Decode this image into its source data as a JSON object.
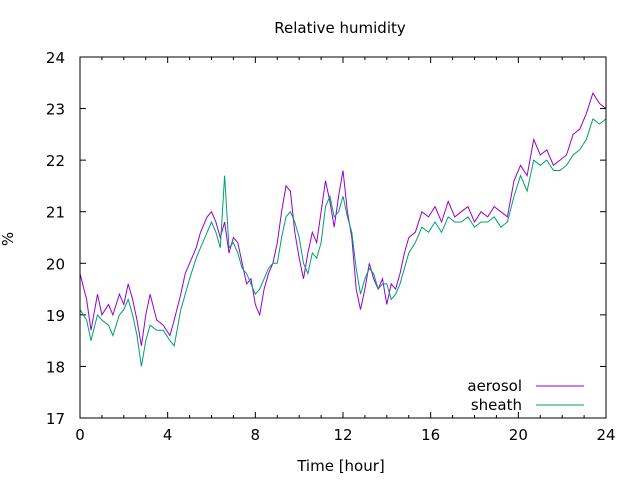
{
  "chart_data": {
    "type": "line",
    "title": "Relative humidity",
    "xlabel": "Time [hour]",
    "ylabel": "%",
    "xlim": [
      0,
      24
    ],
    "ylim": [
      17,
      24
    ],
    "x_ticks": [
      0,
      4,
      8,
      12,
      16,
      20,
      24
    ],
    "y_ticks": [
      17,
      18,
      19,
      20,
      21,
      22,
      23,
      24
    ],
    "grid": false,
    "legend_position": "bottom-right",
    "series": [
      {
        "name": "aerosol",
        "color": "#9400d3",
        "points": [
          [
            0.0,
            19.8
          ],
          [
            0.3,
            19.3
          ],
          [
            0.5,
            18.7
          ],
          [
            0.8,
            19.4
          ],
          [
            1.0,
            19.0
          ],
          [
            1.3,
            19.2
          ],
          [
            1.5,
            19.0
          ],
          [
            1.8,
            19.4
          ],
          [
            2.0,
            19.2
          ],
          [
            2.2,
            19.6
          ],
          [
            2.4,
            19.3
          ],
          [
            2.6,
            18.9
          ],
          [
            2.8,
            18.4
          ],
          [
            3.0,
            19.0
          ],
          [
            3.2,
            19.4
          ],
          [
            3.5,
            18.9
          ],
          [
            3.8,
            18.8
          ],
          [
            4.1,
            18.6
          ],
          [
            4.3,
            18.9
          ],
          [
            4.6,
            19.4
          ],
          [
            4.8,
            19.8
          ],
          [
            5.0,
            20.0
          ],
          [
            5.3,
            20.3
          ],
          [
            5.5,
            20.6
          ],
          [
            5.8,
            20.9
          ],
          [
            6.0,
            21.0
          ],
          [
            6.2,
            20.8
          ],
          [
            6.4,
            20.5
          ],
          [
            6.6,
            20.8
          ],
          [
            6.8,
            20.2
          ],
          [
            7.0,
            20.5
          ],
          [
            7.2,
            20.4
          ],
          [
            7.4,
            20.0
          ],
          [
            7.6,
            19.6
          ],
          [
            7.8,
            19.7
          ],
          [
            8.0,
            19.2
          ],
          [
            8.2,
            19.0
          ],
          [
            8.4,
            19.5
          ],
          [
            8.6,
            19.8
          ],
          [
            8.8,
            20.0
          ],
          [
            9.0,
            20.4
          ],
          [
            9.2,
            21.0
          ],
          [
            9.4,
            21.5
          ],
          [
            9.6,
            21.4
          ],
          [
            9.8,
            20.6
          ],
          [
            10.0,
            20.1
          ],
          [
            10.2,
            19.7
          ],
          [
            10.4,
            20.2
          ],
          [
            10.6,
            20.6
          ],
          [
            10.8,
            20.4
          ],
          [
            11.0,
            21.0
          ],
          [
            11.2,
            21.6
          ],
          [
            11.4,
            21.2
          ],
          [
            11.6,
            20.7
          ],
          [
            11.8,
            21.3
          ],
          [
            12.0,
            21.8
          ],
          [
            12.2,
            21.0
          ],
          [
            12.4,
            20.5
          ],
          [
            12.6,
            19.5
          ],
          [
            12.8,
            19.1
          ],
          [
            13.0,
            19.5
          ],
          [
            13.2,
            20.0
          ],
          [
            13.4,
            19.7
          ],
          [
            13.6,
            19.5
          ],
          [
            13.8,
            19.7
          ],
          [
            14.0,
            19.2
          ],
          [
            14.2,
            19.6
          ],
          [
            14.4,
            19.5
          ],
          [
            14.6,
            19.8
          ],
          [
            14.8,
            20.2
          ],
          [
            15.0,
            20.5
          ],
          [
            15.3,
            20.6
          ],
          [
            15.6,
            21.0
          ],
          [
            15.9,
            20.9
          ],
          [
            16.2,
            21.1
          ],
          [
            16.5,
            20.8
          ],
          [
            16.8,
            21.2
          ],
          [
            17.1,
            20.9
          ],
          [
            17.4,
            21.0
          ],
          [
            17.7,
            21.1
          ],
          [
            18.0,
            20.8
          ],
          [
            18.3,
            21.0
          ],
          [
            18.6,
            20.9
          ],
          [
            18.9,
            21.1
          ],
          [
            19.2,
            21.0
          ],
          [
            19.5,
            20.9
          ],
          [
            19.8,
            21.6
          ],
          [
            20.1,
            21.9
          ],
          [
            20.4,
            21.7
          ],
          [
            20.7,
            22.4
          ],
          [
            21.0,
            22.1
          ],
          [
            21.3,
            22.2
          ],
          [
            21.6,
            21.9
          ],
          [
            21.9,
            22.0
          ],
          [
            22.2,
            22.1
          ],
          [
            22.5,
            22.5
          ],
          [
            22.8,
            22.6
          ],
          [
            23.1,
            22.9
          ],
          [
            23.4,
            23.3
          ],
          [
            23.7,
            23.1
          ],
          [
            24.0,
            23.0
          ]
        ]
      },
      {
        "name": "sheath",
        "color": "#009e73",
        "points": [
          [
            0.0,
            19.1
          ],
          [
            0.3,
            18.9
          ],
          [
            0.5,
            18.5
          ],
          [
            0.8,
            19.0
          ],
          [
            1.0,
            18.9
          ],
          [
            1.3,
            18.8
          ],
          [
            1.5,
            18.6
          ],
          [
            1.8,
            19.0
          ],
          [
            2.0,
            19.1
          ],
          [
            2.2,
            19.3
          ],
          [
            2.4,
            19.0
          ],
          [
            2.6,
            18.6
          ],
          [
            2.8,
            18.0
          ],
          [
            3.0,
            18.5
          ],
          [
            3.2,
            18.8
          ],
          [
            3.5,
            18.7
          ],
          [
            3.8,
            18.7
          ],
          [
            4.1,
            18.5
          ],
          [
            4.3,
            18.4
          ],
          [
            4.6,
            19.1
          ],
          [
            4.8,
            19.4
          ],
          [
            5.0,
            19.7
          ],
          [
            5.3,
            20.1
          ],
          [
            5.5,
            20.3
          ],
          [
            5.8,
            20.6
          ],
          [
            6.0,
            20.8
          ],
          [
            6.2,
            20.6
          ],
          [
            6.4,
            20.3
          ],
          [
            6.6,
            21.7
          ],
          [
            6.8,
            20.3
          ],
          [
            7.0,
            20.4
          ],
          [
            7.2,
            20.2
          ],
          [
            7.4,
            19.9
          ],
          [
            7.6,
            19.8
          ],
          [
            7.8,
            19.6
          ],
          [
            8.0,
            19.4
          ],
          [
            8.2,
            19.5
          ],
          [
            8.4,
            19.7
          ],
          [
            8.6,
            19.9
          ],
          [
            8.8,
            20.0
          ],
          [
            9.0,
            20.0
          ],
          [
            9.2,
            20.5
          ],
          [
            9.4,
            20.9
          ],
          [
            9.6,
            21.0
          ],
          [
            9.8,
            20.8
          ],
          [
            10.0,
            20.5
          ],
          [
            10.2,
            20.0
          ],
          [
            10.4,
            19.8
          ],
          [
            10.6,
            20.2
          ],
          [
            10.8,
            20.1
          ],
          [
            11.0,
            20.4
          ],
          [
            11.2,
            21.1
          ],
          [
            11.4,
            21.3
          ],
          [
            11.6,
            20.9
          ],
          [
            11.8,
            21.0
          ],
          [
            12.0,
            21.3
          ],
          [
            12.2,
            20.9
          ],
          [
            12.4,
            20.6
          ],
          [
            12.6,
            19.9
          ],
          [
            12.8,
            19.4
          ],
          [
            13.0,
            19.7
          ],
          [
            13.2,
            19.9
          ],
          [
            13.4,
            19.8
          ],
          [
            13.6,
            19.5
          ],
          [
            13.8,
            19.6
          ],
          [
            14.0,
            19.6
          ],
          [
            14.2,
            19.3
          ],
          [
            14.4,
            19.4
          ],
          [
            14.6,
            19.6
          ],
          [
            14.8,
            19.9
          ],
          [
            15.0,
            20.2
          ],
          [
            15.3,
            20.4
          ],
          [
            15.6,
            20.7
          ],
          [
            15.9,
            20.6
          ],
          [
            16.2,
            20.8
          ],
          [
            16.5,
            20.6
          ],
          [
            16.8,
            20.9
          ],
          [
            17.1,
            20.8
          ],
          [
            17.4,
            20.8
          ],
          [
            17.7,
            20.9
          ],
          [
            18.0,
            20.7
          ],
          [
            18.3,
            20.8
          ],
          [
            18.6,
            20.8
          ],
          [
            18.9,
            20.9
          ],
          [
            19.2,
            20.7
          ],
          [
            19.5,
            20.8
          ],
          [
            19.8,
            21.3
          ],
          [
            20.1,
            21.7
          ],
          [
            20.4,
            21.4
          ],
          [
            20.7,
            22.0
          ],
          [
            21.0,
            21.9
          ],
          [
            21.3,
            22.0
          ],
          [
            21.6,
            21.8
          ],
          [
            21.9,
            21.8
          ],
          [
            22.2,
            21.9
          ],
          [
            22.5,
            22.1
          ],
          [
            22.8,
            22.2
          ],
          [
            23.1,
            22.4
          ],
          [
            23.4,
            22.8
          ],
          [
            23.7,
            22.7
          ],
          [
            24.0,
            22.8
          ]
        ]
      }
    ]
  }
}
